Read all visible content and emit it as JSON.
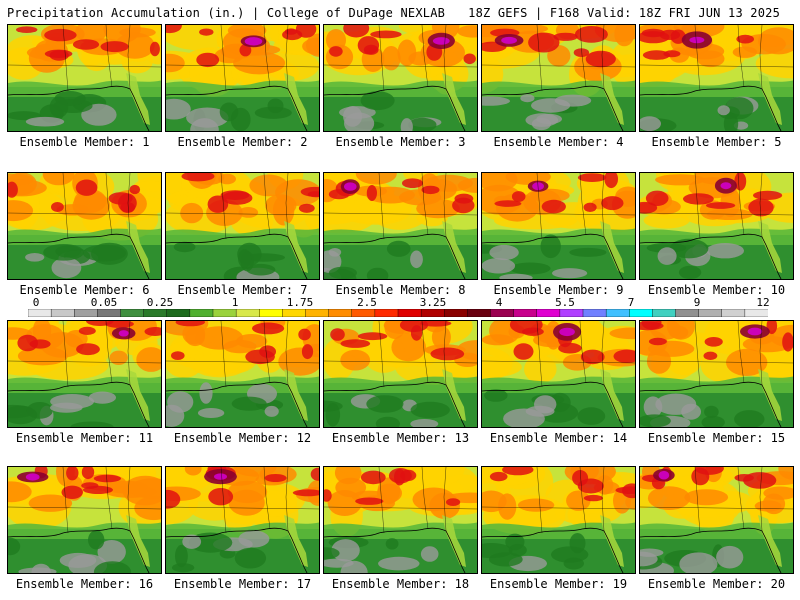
{
  "header": {
    "title": "Precipitation Accumulation (in.) | College of DuPage NEXLAB",
    "run_info": "18Z GEFS | F168 Valid: 18Z FRI JUN 13 2025"
  },
  "colorbar": {
    "labels": [
      "0",
      "0.05",
      "0.25",
      "1",
      "1.75",
      "2.5",
      "3.25",
      "4",
      "5.5",
      "7",
      "9",
      "12"
    ],
    "colors": [
      "#e8e8e8",
      "#c8c8c8",
      "#a0a0a0",
      "#787878",
      "#3f8f3f",
      "#2a7a2a",
      "#1d6b1d",
      "#50b030",
      "#9ad23c",
      "#d8e84a",
      "#ffff00",
      "#ffd700",
      "#ffb300",
      "#ff8c00",
      "#ff5a00",
      "#ff2a00",
      "#e00000",
      "#b00000",
      "#8a0000",
      "#6a0010",
      "#9a0050",
      "#c8008c",
      "#e000d0",
      "#b040ff",
      "#7080ff",
      "#40c0ff",
      "#00ffff",
      "#40d0c0",
      "#909090",
      "#b0b0b0",
      "#d0d0d0",
      "#e8e8e8"
    ]
  },
  "panels": [
    {
      "label": "Ensemble Member: 1"
    },
    {
      "label": "Ensemble Member: 2"
    },
    {
      "label": "Ensemble Member: 3"
    },
    {
      "label": "Ensemble Member: 4"
    },
    {
      "label": "Ensemble Member: 5"
    },
    {
      "label": "Ensemble Member: 6"
    },
    {
      "label": "Ensemble Member: 7"
    },
    {
      "label": "Ensemble Member: 8"
    },
    {
      "label": "Ensemble Member: 9"
    },
    {
      "label": "Ensemble Member: 10"
    },
    {
      "label": "Ensemble Member: 11"
    },
    {
      "label": "Ensemble Member: 12"
    },
    {
      "label": "Ensemble Member: 13"
    },
    {
      "label": "Ensemble Member: 14"
    },
    {
      "label": "Ensemble Member: 15"
    },
    {
      "label": "Ensemble Member: 16"
    },
    {
      "label": "Ensemble Member: 17"
    },
    {
      "label": "Ensemble Member: 18"
    },
    {
      "label": "Ensemble Member: 19"
    },
    {
      "label": "Ensemble Member: 20"
    }
  ]
}
